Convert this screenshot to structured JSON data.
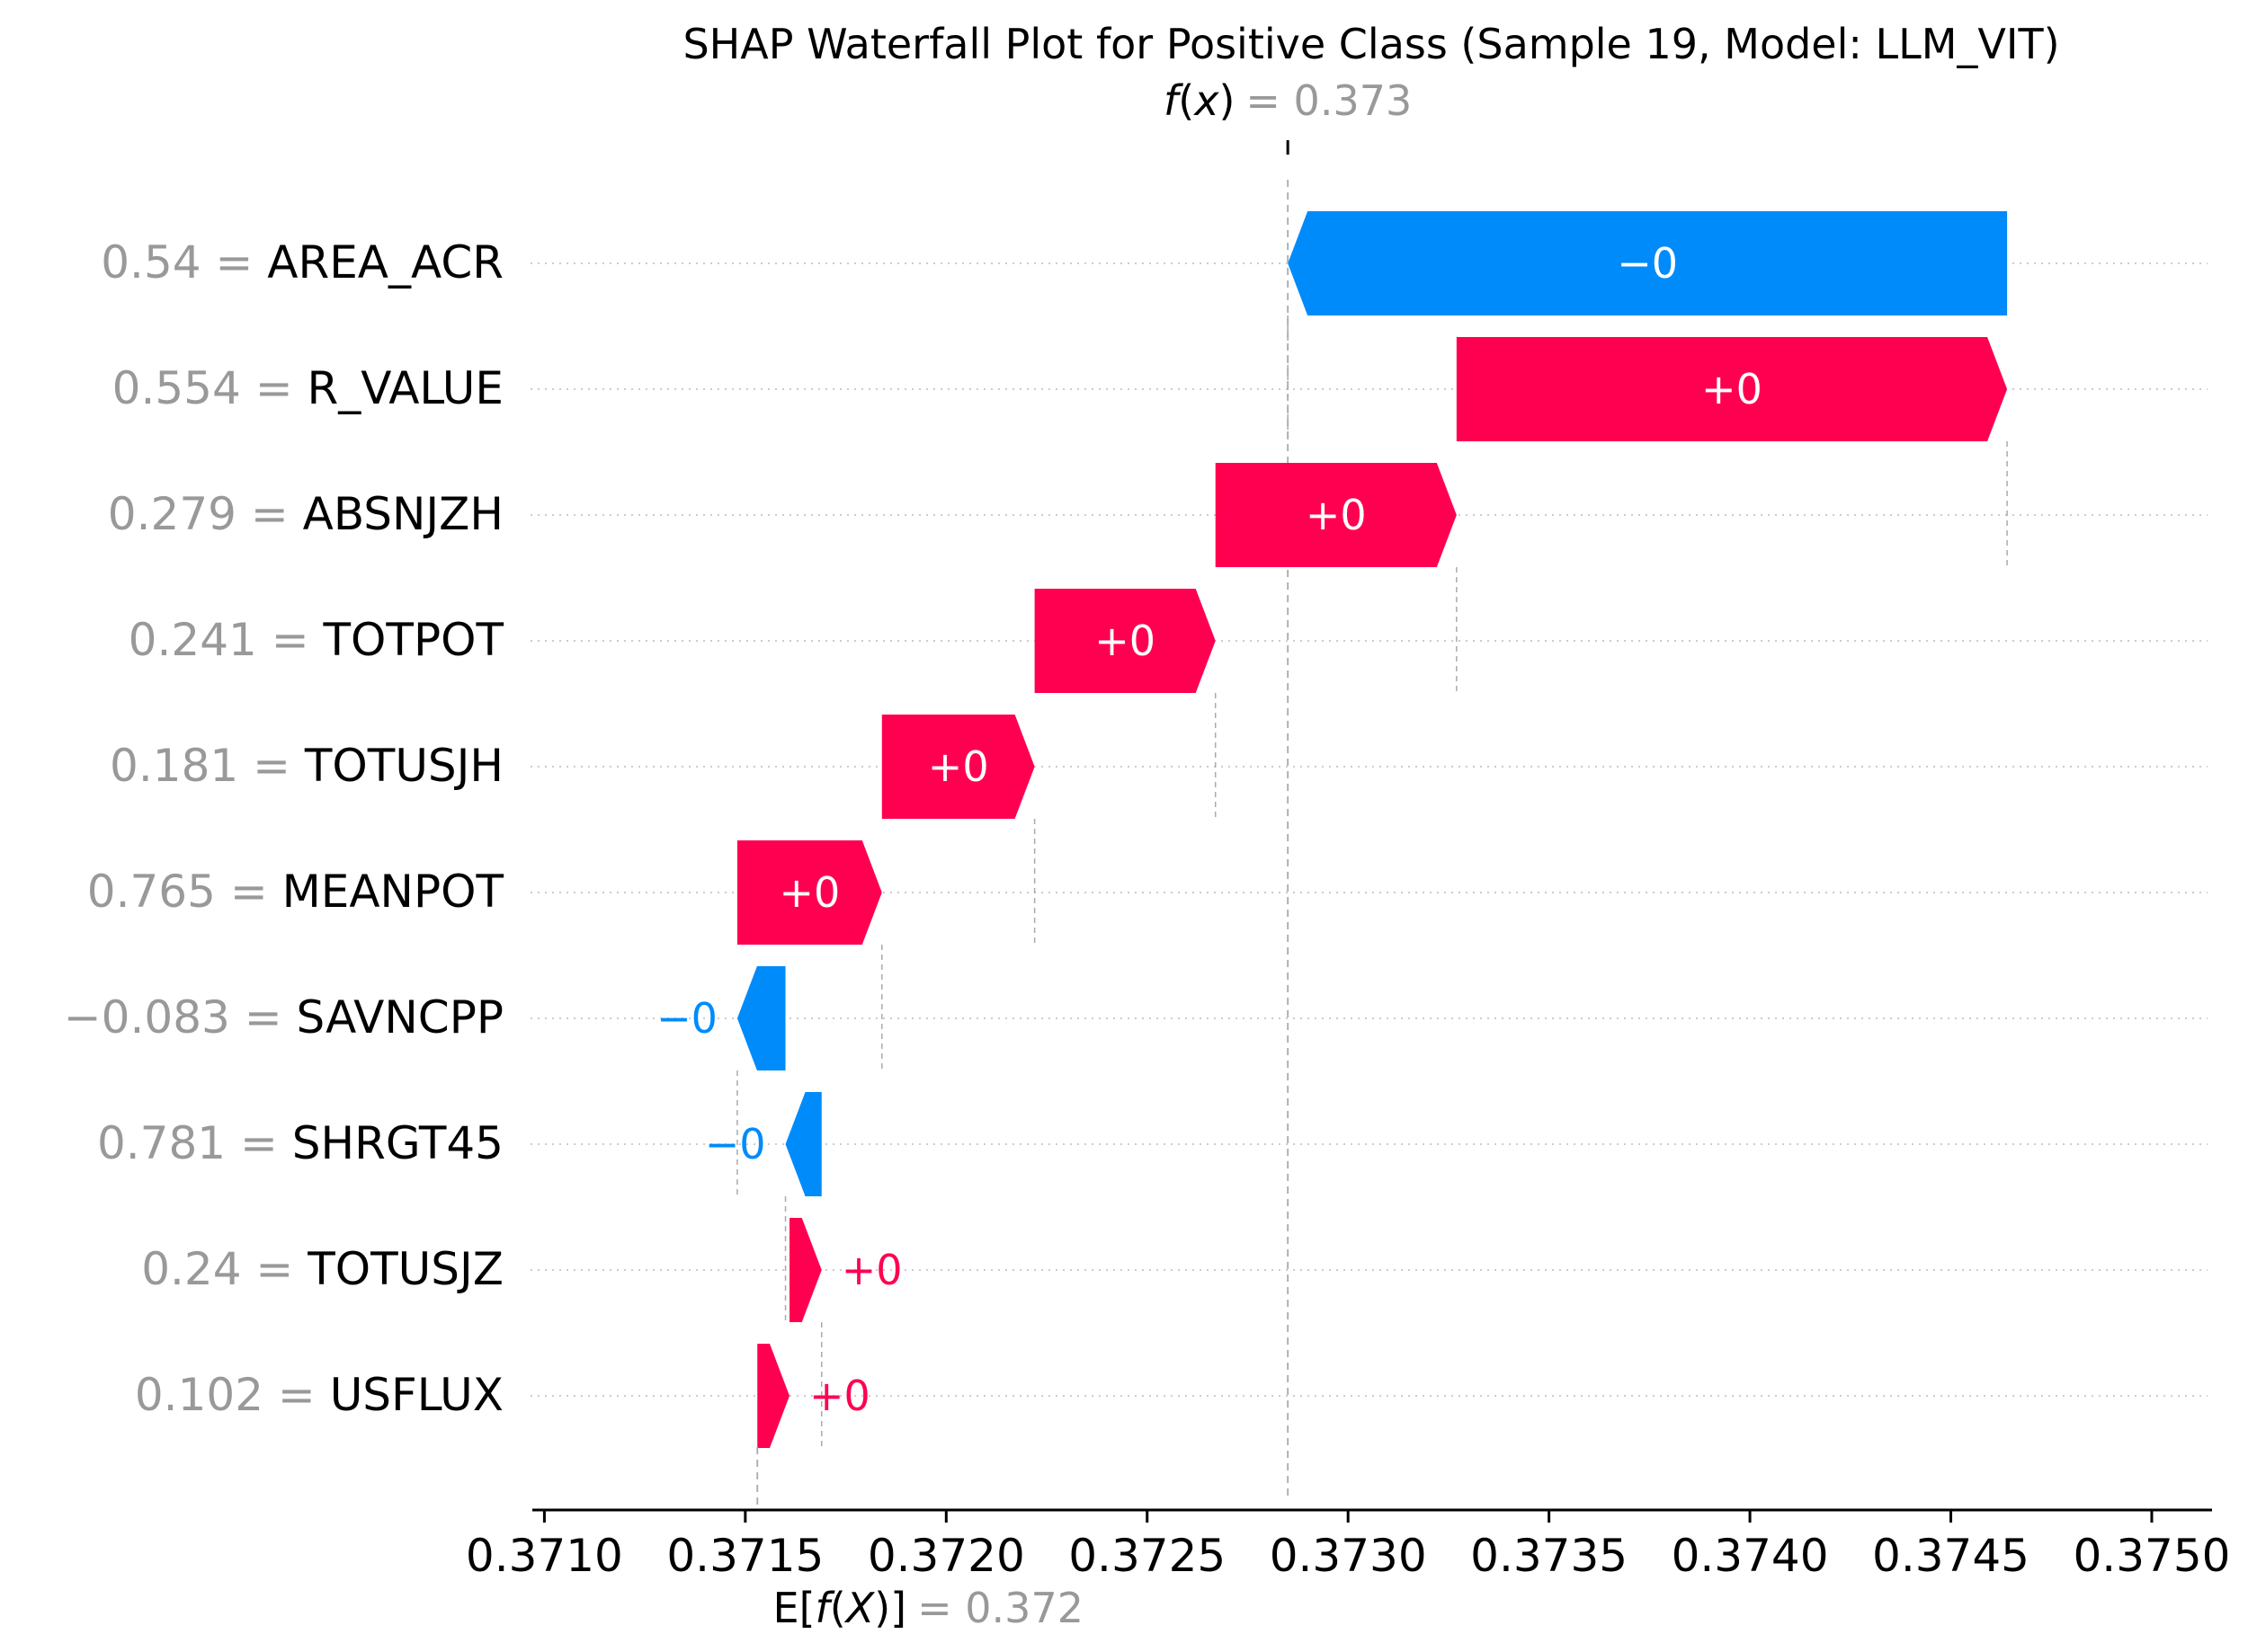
{
  "chart_data": {
    "type": "waterfall",
    "title": "SHAP Waterfall Plot for Positive Class (Sample 19, Model: LLM_VIT)",
    "fx": {
      "label_prefix": "f",
      "label_var": "x",
      "value_text": "= 0.373",
      "value": 0.37285
    },
    "base": {
      "label_prefix": "E[",
      "label_func": "f",
      "label_var": "X",
      "label_suffix": "]",
      "value_text": "= 0.372",
      "value": 0.37153
    },
    "xlim": [
      0.37097,
      0.37515
    ],
    "ticks": [
      "0.3710",
      "0.3715",
      "0.3720",
      "0.3725",
      "0.3730",
      "0.3735",
      "0.3740",
      "0.3745",
      "0.3750"
    ],
    "grid": "horizontal-dotted",
    "features": [
      {
        "value": "0.54",
        "name": "AREA_ACR",
        "start": 0.37464,
        "end": 0.37285,
        "label": "−0",
        "sign": "neg"
      },
      {
        "value": "0.554",
        "name": "R_VALUE",
        "start": 0.37327,
        "end": 0.37464,
        "label": "+0",
        "sign": "pos"
      },
      {
        "value": "0.279",
        "name": "ABSNJZH",
        "start": 0.37267,
        "end": 0.37327,
        "label": "+0",
        "sign": "pos"
      },
      {
        "value": "0.241",
        "name": "TOTPOT",
        "start": 0.37222,
        "end": 0.37267,
        "label": "+0",
        "sign": "pos"
      },
      {
        "value": "0.181",
        "name": "TOTUSJH",
        "start": 0.37184,
        "end": 0.37222,
        "label": "+0",
        "sign": "pos"
      },
      {
        "value": "0.765",
        "name": "MEANPOT",
        "start": 0.37148,
        "end": 0.37184,
        "label": "+0",
        "sign": "pos"
      },
      {
        "value": "−0.083",
        "name": "SAVNCPP",
        "start": 0.3716,
        "end": 0.37148,
        "label": "−0",
        "sign": "neg"
      },
      {
        "value": "0.781",
        "name": "SHRGT45",
        "start": 0.37169,
        "end": 0.3716,
        "label": "−0",
        "sign": "neg"
      },
      {
        "value": "0.24",
        "name": "TOTUSJZ",
        "start": 0.37161,
        "end": 0.37169,
        "label": "+0",
        "sign": "pos"
      },
      {
        "value": "0.102",
        "name": "USFLUX",
        "start": 0.37153,
        "end": 0.37161,
        "label": "+0",
        "sign": "pos"
      }
    ],
    "colors": {
      "positive": "#ff0051",
      "negative": "#008bfb",
      "value_text": "#999999",
      "axis": "#000000",
      "grid": "#cccccc"
    }
  }
}
